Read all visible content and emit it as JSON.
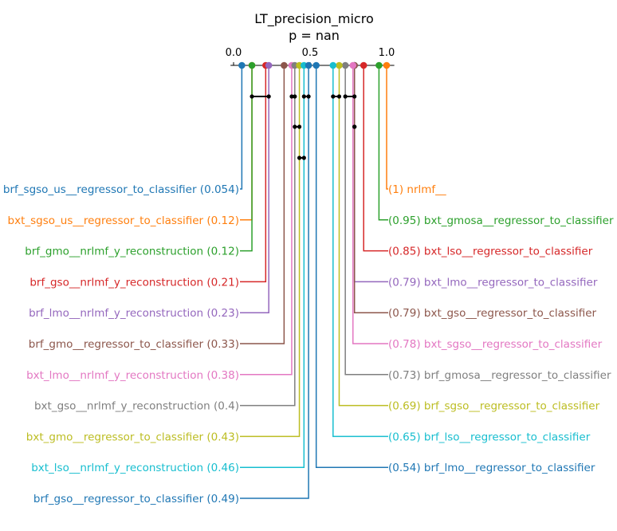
{
  "chart_data": {
    "type": "critical_difference",
    "title": "LT_precision_micro",
    "subtitle": "p = nan",
    "xlim": [
      0.0,
      1.0
    ],
    "ticks": [
      "0.0",
      "0.5",
      "1.0"
    ],
    "left": [
      {
        "name": "brf_sgso_us__regressor_to_classifier",
        "value": 0.054,
        "label": "brf_sgso_us__regressor_to_classifier (0.054)",
        "color": "#1f77b4"
      },
      {
        "name": "bxt_sgso_us__regressor_to_classifier",
        "value": 0.12,
        "label": "bxt_sgso_us__regressor_to_classifier (0.12)",
        "color": "#ff7f0e"
      },
      {
        "name": "brf_gmo__nrlmf_y_reconstruction",
        "value": 0.12,
        "label": "brf_gmo__nrlmf_y_reconstruction (0.12)",
        "color": "#2ca02c"
      },
      {
        "name": "brf_gso__nrlmf_y_reconstruction",
        "value": 0.21,
        "label": "brf_gso__nrlmf_y_reconstruction (0.21)",
        "color": "#d62728"
      },
      {
        "name": "brf_lmo__nrlmf_y_reconstruction",
        "value": 0.23,
        "label": "brf_lmo__nrlmf_y_reconstruction (0.23)",
        "color": "#9467bd"
      },
      {
        "name": "brf_gmo__regressor_to_classifier",
        "value": 0.33,
        "label": "brf_gmo__regressor_to_classifier (0.33)",
        "color": "#8c564b"
      },
      {
        "name": "bxt_lmo__nrlmf_y_reconstruction",
        "value": 0.38,
        "label": "bxt_lmo__nrlmf_y_reconstruction (0.38)",
        "color": "#e377c2"
      },
      {
        "name": "bxt_gso__nrlmf_y_reconstruction",
        "value": 0.4,
        "label": "bxt_gso__nrlmf_y_reconstruction (0.4)",
        "color": "#7f7f7f"
      },
      {
        "name": "bxt_gmo__regressor_to_classifier",
        "value": 0.43,
        "label": "bxt_gmo__regressor_to_classifier (0.43)",
        "color": "#bcbd22"
      },
      {
        "name": "bxt_lso__nrlmf_y_reconstruction",
        "value": 0.46,
        "label": "bxt_lso__nrlmf_y_reconstruction (0.46)",
        "color": "#17becf"
      },
      {
        "name": "brf_gso__regressor_to_classifier",
        "value": 0.49,
        "label": "brf_gso__regressor_to_classifier (0.49)",
        "color": "#1f77b4"
      }
    ],
    "right": [
      {
        "name": "nrlmf__",
        "value": 1,
        "label": "(1) nrlmf__",
        "color": "#ff7f0e"
      },
      {
        "name": "bxt_gmosa__regressor_to_classifier",
        "value": 0.95,
        "label": "(0.95) bxt_gmosa__regressor_to_classifier",
        "color": "#2ca02c"
      },
      {
        "name": "bxt_lso__regressor_to_classifier",
        "value": 0.85,
        "label": "(0.85) bxt_lso__regressor_to_classifier",
        "color": "#d62728"
      },
      {
        "name": "bxt_lmo__regressor_to_classifier",
        "value": 0.79,
        "label": "(0.79) bxt_lmo__regressor_to_classifier",
        "color": "#9467bd"
      },
      {
        "name": "bxt_gso__regressor_to_classifier",
        "value": 0.79,
        "label": "(0.79) bxt_gso__regressor_to_classifier",
        "color": "#8c564b"
      },
      {
        "name": "bxt_sgso__regressor_to_classifier",
        "value": 0.78,
        "label": "(0.78) bxt_sgso__regressor_to_classifier",
        "color": "#e377c2"
      },
      {
        "name": "brf_gmosa__regressor_to_classifier",
        "value": 0.73,
        "label": "(0.73) brf_gmosa__regressor_to_classifier",
        "color": "#7f7f7f"
      },
      {
        "name": "brf_sgso__regressor_to_classifier",
        "value": 0.69,
        "label": "(0.69) brf_sgso__regressor_to_classifier",
        "color": "#bcbd22"
      },
      {
        "name": "brf_lso__regressor_to_classifier",
        "value": 0.65,
        "label": "(0.65) brf_lso__regressor_to_classifier",
        "color": "#17becf"
      },
      {
        "name": "brf_lmo__regressor_to_classifier",
        "value": 0.54,
        "label": "(0.54) brf_lmo__regressor_to_classifier",
        "color": "#1f77b4"
      }
    ],
    "cliques": [
      [
        0.12,
        0.23
      ],
      [
        0.38,
        0.4
      ],
      [
        0.46,
        0.49
      ],
      [
        0.65,
        0.69
      ],
      [
        0.73,
        0.79
      ],
      [
        0.4,
        0.43
      ],
      [
        0.43,
        0.46
      ],
      [
        0.79,
        0.79
      ]
    ]
  }
}
